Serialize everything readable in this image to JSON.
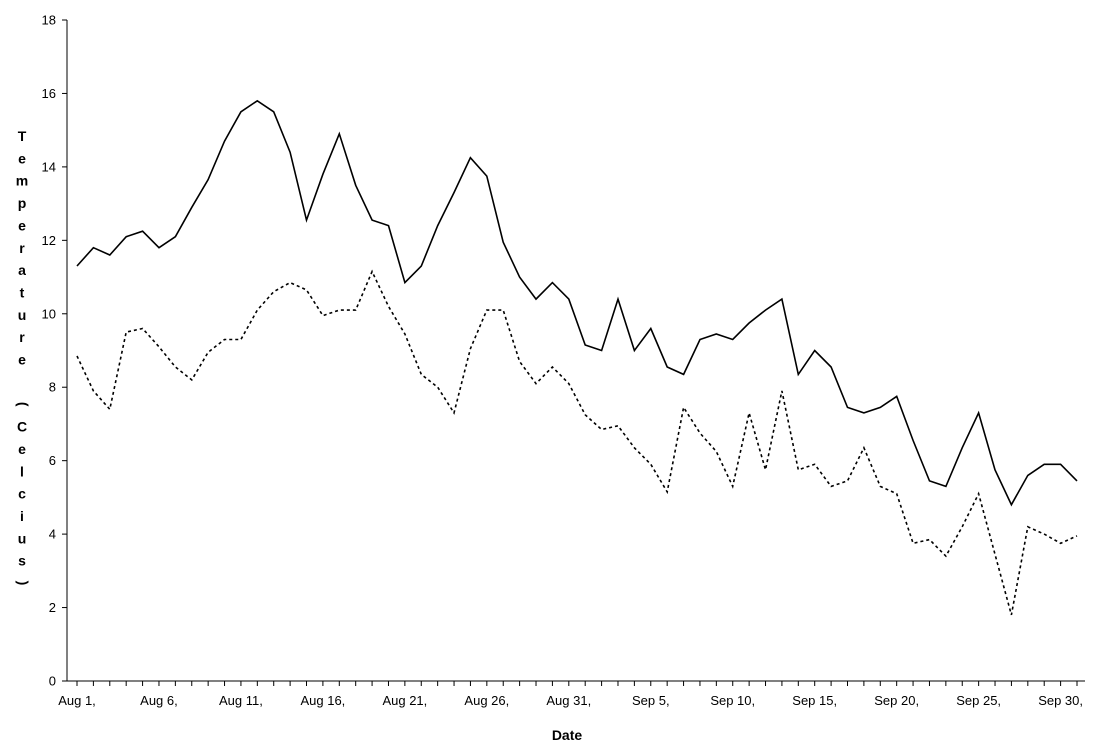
{
  "chart_data": {
    "type": "line",
    "title": "",
    "xlabel": "Date",
    "ylabel": "Temperature (Celcius)",
    "ylim": [
      0,
      18
    ],
    "yticks": [
      0,
      2,
      4,
      6,
      8,
      10,
      12,
      14,
      16,
      18
    ],
    "xtick_labels": [
      "Aug 1,",
      "Aug 6,",
      "Aug 11,",
      "Aug 16,",
      "Aug 21,",
      "Aug 26,",
      "Aug 31,",
      "Sep 5,",
      "Sep 10,",
      "Sep 15,",
      "Sep 20,",
      "Sep 25,",
      "Sep 30,"
    ],
    "x": [
      "Aug 1",
      "Aug 2",
      "Aug 3",
      "Aug 4",
      "Aug 5",
      "Aug 6",
      "Aug 7",
      "Aug 8",
      "Aug 9",
      "Aug 10",
      "Aug 11",
      "Aug 12",
      "Aug 13",
      "Aug 14",
      "Aug 15",
      "Aug 16",
      "Aug 17",
      "Aug 18",
      "Aug 19",
      "Aug 20",
      "Aug 21",
      "Aug 22",
      "Aug 23",
      "Aug 24",
      "Aug 25",
      "Aug 26",
      "Aug 27",
      "Aug 28",
      "Aug 29",
      "Aug 30",
      "Aug 31",
      "Sep 1",
      "Sep 2",
      "Sep 3",
      "Sep 4",
      "Sep 5",
      "Sep 6",
      "Sep 7",
      "Sep 8",
      "Sep 9",
      "Sep 10",
      "Sep 11",
      "Sep 12",
      "Sep 13",
      "Sep 14",
      "Sep 15",
      "Sep 16",
      "Sep 17",
      "Sep 18",
      "Sep 19",
      "Sep 20",
      "Sep 21",
      "Sep 22",
      "Sep 23",
      "Sep 24",
      "Sep 25",
      "Sep 26",
      "Sep 27",
      "Sep 28",
      "Sep 29",
      "Sep 30",
      "Oct 1"
    ],
    "grid": false,
    "legend": "none",
    "series": [
      {
        "style": "solid",
        "values": [
          11.3,
          11.8,
          11.6,
          12.1,
          12.25,
          11.8,
          12.1,
          12.9,
          13.65,
          14.7,
          15.5,
          15.8,
          15.5,
          14.4,
          12.55,
          13.8,
          14.9,
          13.5,
          12.55,
          12.4,
          10.85,
          11.3,
          12.4,
          13.3,
          14.25,
          13.75,
          11.95,
          11.0,
          10.4,
          10.85,
          10.4,
          9.15,
          9.0,
          10.4,
          9.0,
          9.6,
          8.55,
          8.35,
          9.3,
          9.45,
          9.3,
          9.75,
          10.1,
          10.4,
          8.35,
          9.0,
          8.55,
          7.45,
          7.3,
          7.45,
          7.75,
          6.55,
          5.45,
          5.3,
          6.35,
          7.3,
          5.75,
          4.8,
          5.6,
          5.9,
          5.9,
          5.45
        ]
      },
      {
        "style": "dotted",
        "values": [
          8.85,
          7.9,
          7.4,
          9.5,
          9.6,
          9.1,
          8.55,
          8.2,
          8.95,
          9.3,
          9.3,
          10.1,
          10.6,
          10.85,
          10.65,
          9.95,
          10.1,
          10.1,
          11.15,
          10.2,
          9.45,
          8.35,
          8.0,
          7.3,
          9.05,
          10.1,
          10.1,
          8.7,
          8.1,
          8.55,
          8.1,
          7.25,
          6.85,
          6.95,
          6.35,
          5.9,
          5.15,
          7.45,
          6.75,
          6.25,
          5.3,
          7.3,
          5.75,
          7.9,
          5.75,
          5.9,
          5.3,
          5.45,
          6.35,
          5.3,
          5.1,
          3.75,
          3.85,
          3.4,
          4.2,
          5.1,
          3.45,
          1.8,
          4.2,
          4.0,
          3.75,
          3.95
        ]
      }
    ]
  }
}
